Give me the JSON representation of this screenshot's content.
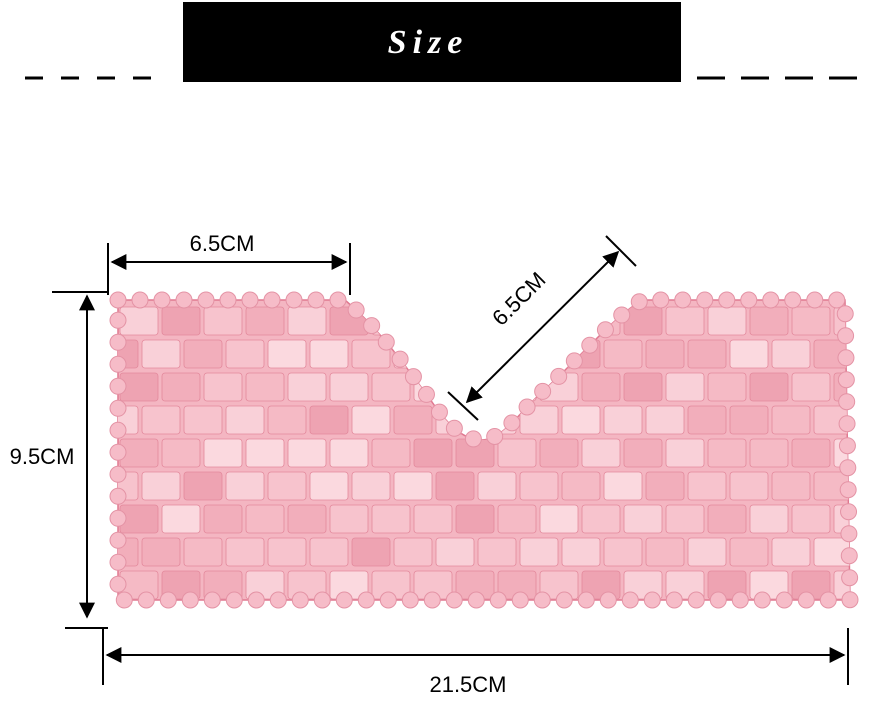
{
  "header": {
    "title": "Size"
  },
  "dimensions": {
    "top_width": "6.5CM",
    "diagonal": "6.5CM",
    "height": "9.5CM",
    "total_width": "21.5CM"
  }
}
